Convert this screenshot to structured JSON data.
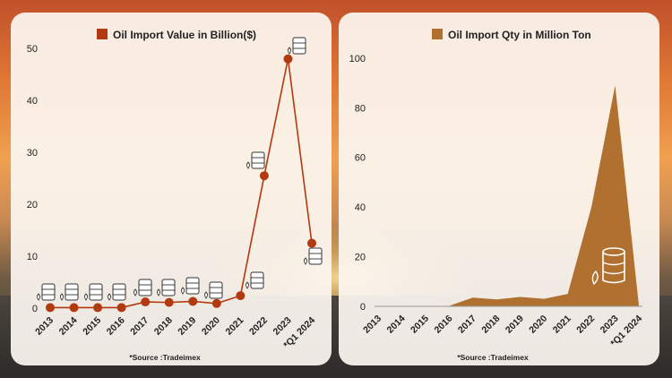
{
  "colors": {
    "value_series": "#b23a10",
    "qty_series": "#b07030"
  },
  "chart_data": [
    {
      "type": "line",
      "legend": "Oil Import Value in Billion($)",
      "legend_position": "top-center",
      "categories": [
        "2013",
        "2014",
        "2015",
        "2016",
        "2017",
        "2018",
        "2019",
        "2020",
        "2021",
        "2022",
        "2023",
        "*Q1 2024"
      ],
      "series": [
        {
          "name": "Oil Import Value in Billion($)",
          "values": [
            0.1,
            0.1,
            0.1,
            0.1,
            1.2,
            1.1,
            1.3,
            0.9,
            2.4,
            25.5,
            48.0,
            12.5
          ]
        }
      ],
      "ylim": [
        0,
        54
      ],
      "yticks": [
        0,
        10,
        20,
        30,
        40,
        50
      ],
      "grid": false,
      "markers": "oil-barrel-icon",
      "source": "*Source :Tradeimex"
    },
    {
      "type": "area",
      "legend": "Oil Import Qty in Million Ton",
      "legend_position": "top-center",
      "categories": [
        "2013",
        "2014",
        "2015",
        "2016",
        "2017",
        "2018",
        "2019",
        "2020",
        "2021",
        "2022",
        "2023",
        "*Q1 2024"
      ],
      "series": [
        {
          "name": "Oil Import Qty in Million Ton",
          "values": [
            0.2,
            0.2,
            0.2,
            0.2,
            3.5,
            2.8,
            3.8,
            3.0,
            5.0,
            40.0,
            89.0,
            0.5
          ]
        }
      ],
      "ylim": [
        0,
        105
      ],
      "yticks": [
        0,
        20,
        40,
        60,
        80,
        100
      ],
      "grid": false,
      "source": "*Source :Tradeimex"
    }
  ]
}
